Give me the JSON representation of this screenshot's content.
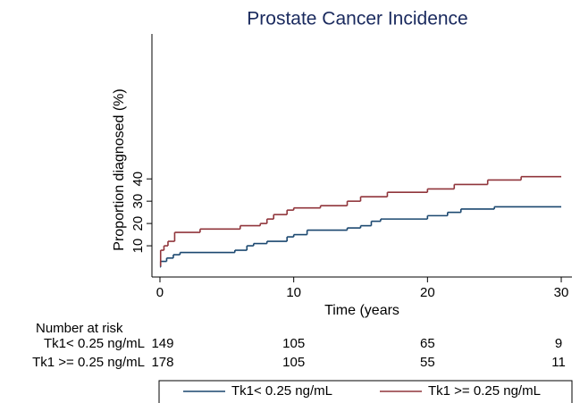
{
  "chart_data": {
    "type": "step",
    "title": "Prostate Cancer Incidence",
    "y_label": "Proportion diagnosed (%)",
    "x_label": "Time (years",
    "xlim": [
      -0.6,
      30.8
    ],
    "xticks": [
      0,
      10,
      20,
      30
    ],
    "ylim": [
      -4,
      105
    ],
    "yticks": [
      10,
      20,
      30,
      40
    ],
    "series": [
      {
        "name": "Tk1< 0.25 ng/mL",
        "color": "#1a476f",
        "x": [
          0,
          0.05,
          0.5,
          1,
          1.5,
          5.6,
          6.5,
          7,
          8,
          9.5,
          10,
          11,
          14,
          15,
          15.8,
          16.5,
          20,
          21.5,
          22.5,
          25,
          30
        ],
        "values": [
          0.5,
          3,
          4.5,
          6,
          7,
          8,
          10,
          11,
          12,
          14,
          15,
          17,
          18,
          19,
          21,
          22,
          23.5,
          25,
          26.5,
          27.5,
          27.5
        ]
      },
      {
        "name": "Tk1 >= 0.25 ng/mL",
        "color": "#90353b",
        "x": [
          0,
          0.05,
          0.3,
          0.6,
          1.1,
          3,
          6,
          7.5,
          8,
          8.5,
          9.5,
          10,
          12,
          14,
          15,
          17,
          20,
          22,
          24.5,
          27,
          30
        ],
        "values": [
          1,
          8,
          10,
          12,
          16,
          17.5,
          19,
          20,
          22,
          24,
          26,
          27,
          28,
          30,
          32,
          34,
          35.5,
          37.5,
          39.5,
          41,
          41
        ]
      }
    ],
    "risk_table": {
      "title": "Number at risk",
      "times": [
        0,
        10,
        20,
        30
      ],
      "rows": [
        {
          "name": "Tk1< 0.25 ng/mL",
          "values": [
            149,
            105,
            65,
            9
          ]
        },
        {
          "name": "Tk1 >= 0.25 ng/mL",
          "values": [
            178,
            105,
            55,
            11
          ]
        }
      ]
    }
  }
}
